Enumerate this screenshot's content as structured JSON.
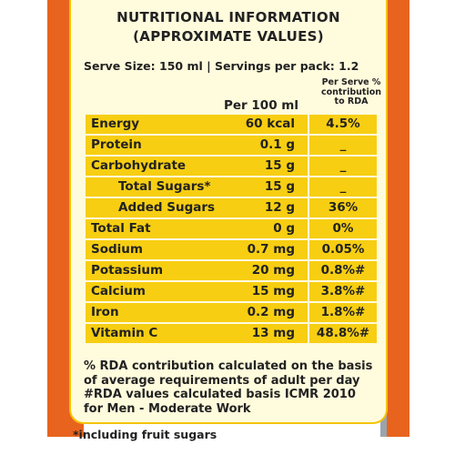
{
  "title_line1": "NUTRITIONAL INFORMATION",
  "title_line2": "(APPROXIMATE VALUES)",
  "serve_line": "Serve Size: 150 ml | Servings per pack: 1.2",
  "col_per100": "Per 100 ml",
  "col_rda_line1": "Per Serve %",
  "col_rda_line2": "contribution",
  "col_rda_line3": "to RDA",
  "rows": [
    {
      "name": "Energy",
      "value": "60 kcal",
      "rda": "4.5%"
    },
    {
      "name": "Protein",
      "value": "0.1 g",
      "rda": "_"
    },
    {
      "name": "Carbohydrate",
      "value": "15 g",
      "rda": "_"
    },
    {
      "name": "Total Sugars*",
      "value": "15 g",
      "rda": "_"
    },
    {
      "name": "Added Sugars",
      "value": "12 g",
      "rda": "36%"
    },
    {
      "name": "Total Fat",
      "value": "0 g",
      "rda": "0%"
    },
    {
      "name": "Sodium",
      "value": "0.7 mg",
      "rda": "0.05%"
    },
    {
      "name": "Potassium",
      "value": "20 mg",
      "rda": "0.8%#"
    },
    {
      "name": "Calcium",
      "value": "15 mg",
      "rda": "3.8%#"
    },
    {
      "name": "Iron",
      "value": "0.2 mg",
      "rda": "1.8%#"
    },
    {
      "name": "Vitamin C",
      "value": "13 mg",
      "rda": "48.8%#"
    }
  ],
  "foot_line1": "% RDA contribution calculated on the basis",
  "foot_line2": "of average requirements of adult per day",
  "foot_line3": "#RDA values calculated basis ICMR 2010",
  "foot_line4": "for Men - Moderate Work",
  "footnote_sugars": "*including fruit sugars"
}
